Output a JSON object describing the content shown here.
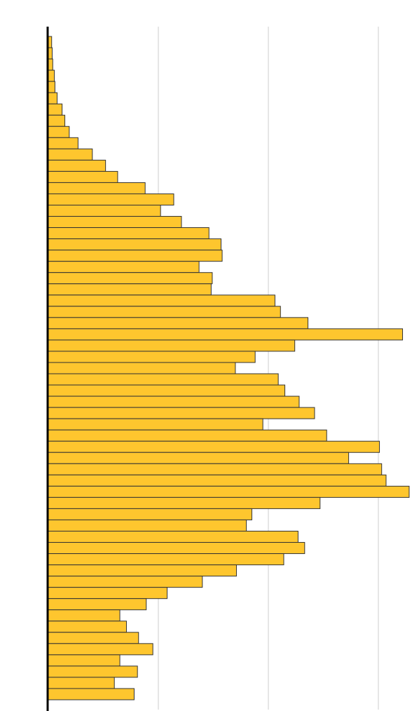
{
  "chart_data": {
    "type": "bar",
    "orientation": "horizontal",
    "title": "",
    "xlabel": "",
    "ylabel": "",
    "grid": true,
    "bar_color": "#fec62e",
    "bar_outline": "#333333",
    "axis_color": "#000000",
    "gridline_color": "#cccccc",
    "gridline_values": [
      10,
      20,
      30
    ],
    "xlim": [
      0,
      33
    ],
    "values": [
      0.3,
      0.35,
      0.4,
      0.55,
      0.6,
      0.8,
      1.25,
      1.5,
      1.9,
      2.7,
      4.0,
      5.2,
      6.3,
      8.8,
      11.4,
      10.2,
      12.1,
      14.6,
      15.7,
      15.8,
      13.7,
      14.9,
      14.8,
      20.6,
      21.1,
      23.6,
      32.2,
      22.4,
      18.8,
      17.0,
      20.9,
      21.5,
      22.8,
      24.2,
      19.5,
      25.3,
      30.1,
      27.3,
      30.3,
      30.7,
      32.8,
      24.7,
      18.5,
      18.0,
      22.7,
      23.3,
      21.4,
      17.1,
      14.0,
      10.8,
      8.9,
      6.5,
      7.1,
      8.2,
      9.5,
      6.5,
      8.1,
      6.0,
      7.8
    ]
  }
}
